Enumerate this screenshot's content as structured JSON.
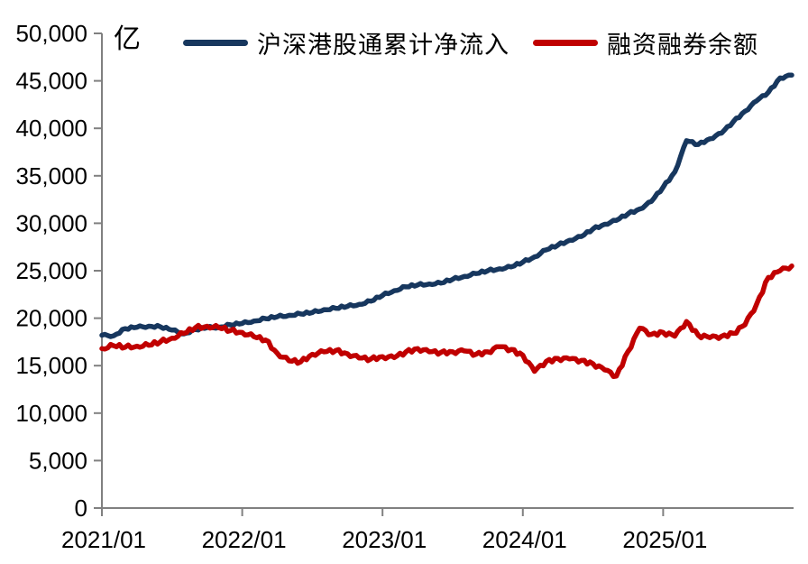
{
  "chart_data": {
    "type": "line",
    "title": "",
    "unit_label": "亿",
    "xlabel": "",
    "ylabel": "",
    "ylim": [
      0,
      50000
    ],
    "grid": false,
    "legend_position": "top",
    "y_ticks": [
      0,
      5000,
      10000,
      15000,
      20000,
      25000,
      30000,
      35000,
      40000,
      45000,
      50000
    ],
    "y_tick_labels": [
      "0",
      "5,000",
      "10,000",
      "15,000",
      "20,000",
      "25,000",
      "30,000",
      "35,000",
      "40,000",
      "45,000",
      "50,000"
    ],
    "x_tick_labels": [
      "2021/01",
      "2022/01",
      "2023/01",
      "2024/01",
      "2025/01"
    ],
    "x_start": "2021/01",
    "x_end": "2025/12",
    "points_per_year": 12,
    "series": [
      {
        "name": "沪深港股通累计净流入",
        "color": "#17375e",
        "values": [
          18200,
          18150,
          18900,
          19050,
          19150,
          19100,
          18750,
          18350,
          18800,
          19000,
          19050,
          19300,
          19450,
          19700,
          19950,
          20150,
          20300,
          20450,
          20600,
          20900,
          21050,
          21250,
          21450,
          21800,
          22400,
          22900,
          23300,
          23500,
          23600,
          23700,
          24100,
          24400,
          24700,
          25000,
          25200,
          25400,
          25900,
          26450,
          27200,
          27700,
          28200,
          28600,
          29400,
          29900,
          30300,
          31000,
          31500,
          32300,
          33800,
          35400,
          38700,
          38300,
          38900,
          39500,
          40700,
          41800,
          42900,
          43800,
          45300,
          45600
        ]
      },
      {
        "name": "融资融券余额",
        "color": "#c00000",
        "values": [
          16800,
          17100,
          16950,
          17050,
          17150,
          17500,
          17900,
          18400,
          19000,
          19150,
          19000,
          18700,
          18500,
          18050,
          17700,
          16300,
          15500,
          15400,
          16200,
          16450,
          16600,
          16250,
          15800,
          15700,
          15950,
          15850,
          16450,
          16800,
          16450,
          16400,
          16450,
          16550,
          16200,
          16450,
          17000,
          16700,
          16100,
          14400,
          15450,
          15750,
          15700,
          15550,
          15200,
          14550,
          13900,
          16500,
          18950,
          18300,
          18500,
          18100,
          19650,
          18200,
          17950,
          18100,
          18400,
          19300,
          21500,
          24300,
          25000,
          25500
        ]
      }
    ],
    "axis_color": "#808080",
    "text_color": "#000000"
  }
}
